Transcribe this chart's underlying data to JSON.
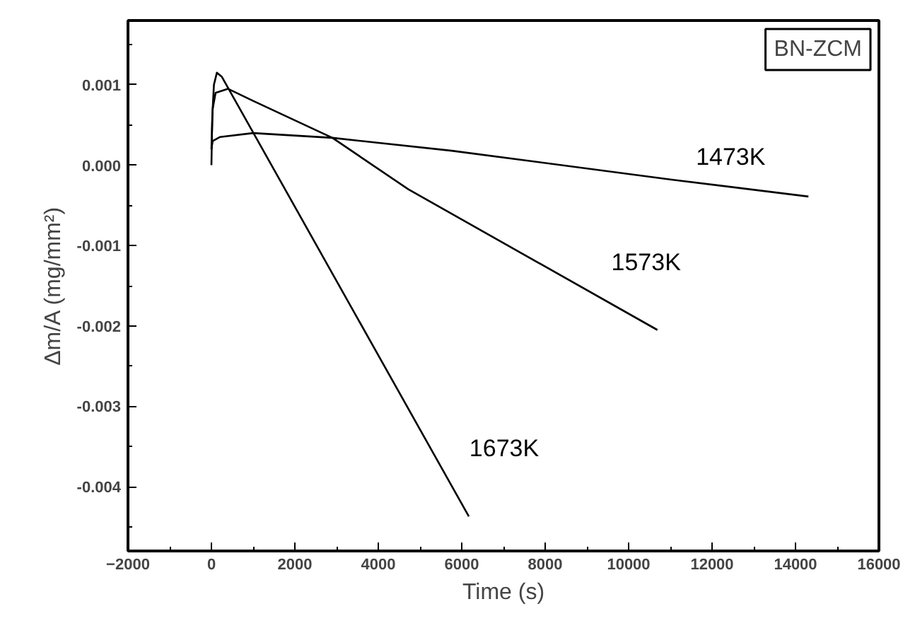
{
  "chart_data": {
    "type": "line",
    "xlabel": "Time (s)",
    "ylabel": "Δm/A (mg/mm²)",
    "xlim": [
      -2000,
      16000
    ],
    "xticks": [
      -2000,
      0,
      2000,
      4000,
      6000,
      8000,
      10000,
      12000,
      14000,
      16000
    ],
    "ylim": [
      -0.0048,
      0.0018
    ],
    "yticks": [
      {
        "value": 0.001,
        "label": "0.001"
      },
      {
        "value": 0,
        "label": "0.000"
      },
      {
        "value": -0.001,
        "label": "-0.001"
      },
      {
        "value": -0.002,
        "label": "-0.002"
      },
      {
        "value": -0.003,
        "label": "-0.003"
      },
      {
        "value": -0.004,
        "label": "-0.004"
      }
    ],
    "annotations": [
      "BN-ZCM"
    ],
    "grid": false,
    "marker": "none",
    "line_style": "solid",
    "series": [
      {
        "name": "1473K",
        "color": "#000000",
        "x": [
          0,
          30,
          200,
          1000,
          2900,
          5760,
          11030,
          14310
        ],
        "values": [
          0.0002,
          0.0003,
          0.00035,
          0.0004,
          0.00034,
          0.00018,
          -0.00018,
          -0.00039
        ]
      },
      {
        "name": "1573K",
        "color": "#000000",
        "x": [
          0,
          30,
          100,
          400,
          1000,
          2900,
          4720,
          10690
        ],
        "values": [
          0.0002,
          0.0007,
          0.0009,
          0.00095,
          0.0008,
          0.00034,
          -0.0003,
          -0.00205
        ]
      },
      {
        "name": "1673K",
        "color": "#000000",
        "x": [
          0,
          20,
          60,
          130,
          250,
          6170
        ],
        "values": [
          0,
          0.0006,
          0.001,
          0.00115,
          0.0011,
          -0.00437
        ]
      }
    ]
  }
}
